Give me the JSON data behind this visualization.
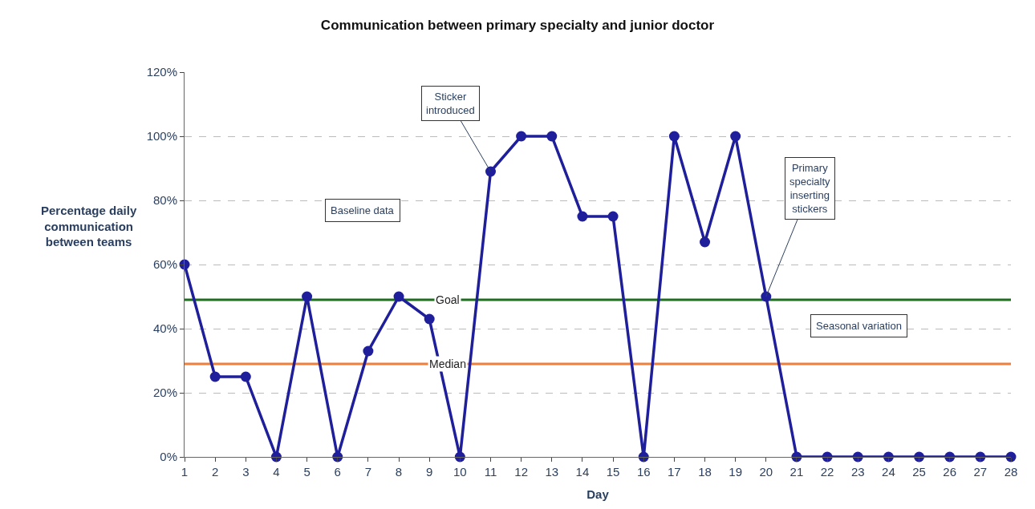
{
  "chart_data": {
    "type": "line",
    "title": "Communication between primary specialty and junior doctor",
    "xlabel": "Day",
    "ylabel": "Percentage daily communication between teams",
    "x": [
      1,
      2,
      3,
      4,
      5,
      6,
      7,
      8,
      9,
      10,
      11,
      12,
      13,
      14,
      15,
      16,
      17,
      18,
      19,
      20,
      21,
      22,
      23,
      24,
      25,
      26,
      27,
      28
    ],
    "series": [
      {
        "color": "#1f1f9c",
        "values": [
          60,
          25,
          25,
          0,
          50,
          0,
          33,
          50,
          43,
          0,
          89,
          100,
          100,
          75,
          75,
          0,
          100,
          67,
          100,
          50,
          0,
          0,
          0,
          0,
          0,
          0,
          0,
          0
        ]
      }
    ],
    "xlim": [
      1,
      28
    ],
    "xticks": [
      1,
      2,
      3,
      4,
      5,
      6,
      7,
      8,
      9,
      10,
      11,
      12,
      13,
      14,
      15,
      16,
      17,
      18,
      19,
      20,
      21,
      22,
      23,
      24,
      25,
      26,
      27,
      28
    ],
    "ylim": [
      0,
      120
    ],
    "yticks": [
      {
        "value": 0,
        "label": "0%"
      },
      {
        "value": 20,
        "label": "20%"
      },
      {
        "value": 40,
        "label": "40%"
      },
      {
        "value": 60,
        "label": "60%"
      },
      {
        "value": 80,
        "label": "80%"
      },
      {
        "value": 100,
        "label": "100%"
      },
      {
        "value": 120,
        "label": "120%"
      }
    ],
    "grid": "y",
    "marker": "circle",
    "line_style": "solid",
    "legend": false,
    "ref_lines": [
      {
        "axis": "y",
        "value": 49,
        "label": "Goal",
        "color": "#1e6e1e"
      },
      {
        "axis": "y",
        "value": 29,
        "label": "Median",
        "color": "#f07f3c"
      }
    ],
    "annotations": [
      "Baseline data",
      {
        "text": "Sticker introduced",
        "x": 11,
        "y": 89
      },
      {
        "text": "Primary specialty inserting stickers",
        "x": 20,
        "y": 50
      },
      "Seasonal variation"
    ]
  }
}
